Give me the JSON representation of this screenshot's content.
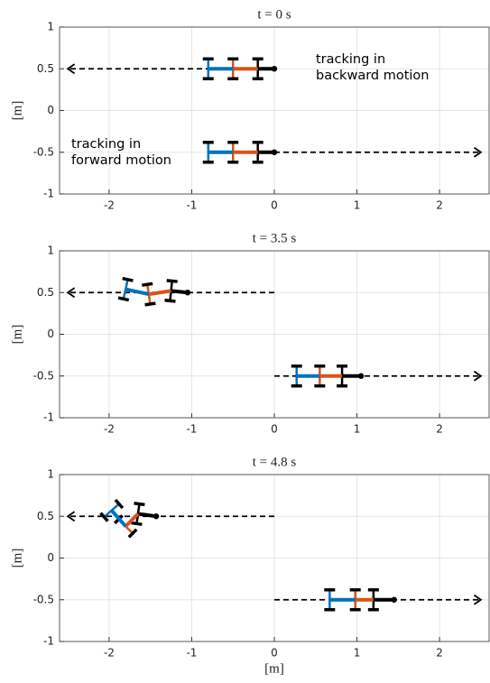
{
  "chart_data": [
    {
      "type": "vehicle",
      "title": "t = 0 s",
      "ylabel": "[m]",
      "xlim": [
        -2.6,
        2.6
      ],
      "ylim": [
        -1,
        1
      ],
      "xticks": [
        -2,
        -1,
        0,
        1,
        2
      ],
      "yticks": [
        -1,
        -0.5,
        0,
        0.5,
        1
      ],
      "grid": true,
      "paths": [
        {
          "x": [
            0,
            -2.5
          ],
          "y": [
            0.5,
            0.5
          ],
          "color": "#000000"
        },
        {
          "x": [
            0,
            2.5
          ],
          "y": [
            -0.5,
            -0.5
          ],
          "color": "#000000"
        }
      ],
      "vehicles": [
        {
          "x": [
            0,
            -0.2,
            -0.5,
            -0.8
          ],
          "y": [
            0.5,
            0.5,
            0.5,
            0.5
          ],
          "colors": [
            "#000000",
            "#d95319",
            "#0072bd"
          ]
        },
        {
          "x": [
            0,
            -0.2,
            -0.5,
            -0.8
          ],
          "y": [
            -0.5,
            -0.5,
            -0.5,
            -0.5
          ],
          "colors": [
            "#000000",
            "#d95319",
            "#0072bd"
          ]
        }
      ],
      "annotations": [
        [
          "tracking in",
          "backward motion"
        ],
        [
          "tracking in",
          "forward motion"
        ]
      ]
    },
    {
      "type": "vehicle",
      "title": "t = 3.5 s",
      "ylabel": "[m]",
      "xlim": [
        -2.6,
        2.6
      ],
      "ylim": [
        -1,
        1
      ],
      "xticks": [
        -2,
        -1,
        0,
        1,
        2
      ],
      "yticks": [
        -1,
        -0.5,
        0,
        0.5,
        1
      ],
      "grid": true,
      "paths": [
        {
          "x": [
            0,
            -2.5
          ],
          "y": [
            0.5,
            0.5
          ],
          "color": "#000000"
        },
        {
          "x": [
            0,
            2.5
          ],
          "y": [
            -0.5,
            -0.5
          ],
          "color": "#000000"
        }
      ],
      "vehicles": [
        {
          "x": [
            -1.05,
            -1.25,
            -1.52,
            -1.8
          ],
          "y": [
            0.5,
            0.52,
            0.48,
            0.54
          ],
          "colors": [
            "#000000",
            "#d95319",
            "#0072bd"
          ]
        },
        {
          "x": [
            1.05,
            0.82,
            0.55,
            0.27
          ],
          "y": [
            -0.5,
            -0.5,
            -0.5,
            -0.5
          ],
          "colors": [
            "#000000",
            "#d95319",
            "#0072bd"
          ]
        }
      ]
    },
    {
      "type": "vehicle",
      "title": "t = 4.8 s",
      "ylabel": "[m]",
      "xlabel": "[m]",
      "xlim": [
        -2.6,
        2.6
      ],
      "ylim": [
        -1,
        1
      ],
      "xticks": [
        -2,
        -1,
        0,
        1,
        2
      ],
      "yticks": [
        -1,
        -0.5,
        0,
        0.5,
        1
      ],
      "grid": true,
      "paths": [
        {
          "x": [
            0,
            -2.5
          ],
          "y": [
            0.5,
            0.5
          ],
          "color": "#000000"
        },
        {
          "x": [
            0,
            2.5
          ],
          "y": [
            -0.5,
            -0.5
          ],
          "color": "#000000"
        }
      ],
      "vehicles": [
        {
          "x": [
            -1.43,
            -1.65,
            -1.8,
            -1.97
          ],
          "y": [
            0.5,
            0.53,
            0.38,
            0.57
          ],
          "colors": [
            "#000000",
            "#d95319",
            "#0072bd"
          ]
        },
        {
          "x": [
            1.45,
            1.2,
            0.98,
            0.67
          ],
          "y": [
            -0.5,
            -0.5,
            -0.5,
            -0.5
          ],
          "colors": [
            "#000000",
            "#d95319",
            "#0072bd"
          ]
        }
      ]
    }
  ]
}
